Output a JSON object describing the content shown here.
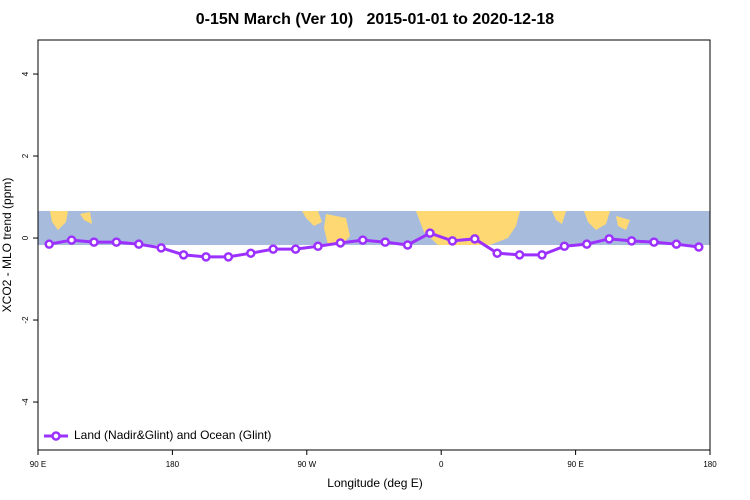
{
  "chart_data": {
    "type": "line",
    "title": "0-15N March (Ver 10)   2015-01-01 to 2020-12-18",
    "x_label": "Longitude (deg E)",
    "y_label": "XCO2 - MLO trend (ppm)",
    "x": [
      97.5,
      112.5,
      127.5,
      142.5,
      157.5,
      172.5,
      187.5,
      202.5,
      217.5,
      232.5,
      247.5,
      262.5,
      277.5,
      292.5,
      307.5,
      322.5,
      337.5,
      352.5,
      367.5,
      382.5,
      397.5,
      412.5,
      427.5,
      442.5,
      457.5,
      472.5,
      487.5,
      502.5,
      517.5,
      532.5
    ],
    "series": [
      {
        "name": "Land (Nadir&Glint) and Ocean (Glint)",
        "color": "#9b30ff",
        "values": [
          -0.15,
          -0.05,
          -0.1,
          -0.1,
          -0.15,
          -0.24,
          -0.41,
          -0.46,
          -0.46,
          -0.37,
          -0.27,
          -0.27,
          -0.2,
          -0.12,
          -0.05,
          -0.1,
          -0.17,
          0.12,
          -0.07,
          -0.02,
          -0.37,
          -0.41,
          -0.41,
          -0.2,
          -0.15,
          -0.02,
          -0.07,
          -0.1,
          -0.15,
          -0.22
        ]
      }
    ],
    "xlim": [
      90,
      540
    ],
    "xticks": [
      {
        "value": 90,
        "label": "90 E"
      },
      {
        "value": 180,
        "label": "180"
      },
      {
        "value": 270,
        "label": "90 W"
      },
      {
        "value": 360,
        "label": "0"
      },
      {
        "value": 450,
        "label": "90 E"
      },
      {
        "value": 540,
        "label": "180"
      }
    ],
    "ylim": [
      -5.17,
      4.83
    ],
    "yticks": [
      {
        "value": -4,
        "label": "-4"
      },
      {
        "value": -2,
        "label": "-2"
      },
      0,
      2,
      4
    ],
    "legend": "bottomleft"
  }
}
